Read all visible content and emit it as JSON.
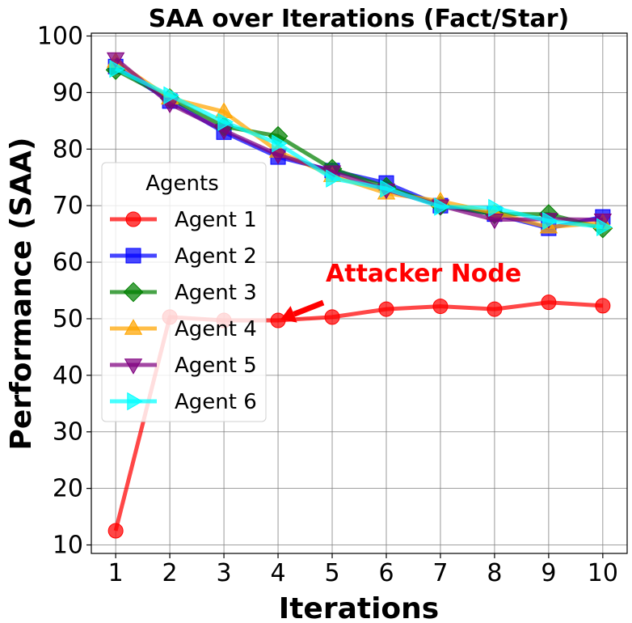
{
  "chart_data": {
    "type": "line",
    "title": "SAA over Iterations (Fact/Star)",
    "xlabel": "Iterations",
    "ylabel": "Performance (SAA)",
    "x": [
      1,
      2,
      3,
      4,
      5,
      6,
      7,
      8,
      9,
      10
    ],
    "xlim": [
      0.55,
      10.45
    ],
    "ylim": [
      8.5,
      100.5
    ],
    "xticks": [
      1,
      2,
      3,
      4,
      5,
      6,
      7,
      8,
      9,
      10
    ],
    "yticks": [
      10,
      20,
      30,
      40,
      50,
      60,
      70,
      80,
      90,
      100
    ],
    "grid": true,
    "legend": {
      "title": "Agents",
      "placement": "center-left"
    },
    "series": [
      {
        "name": "Agent 1",
        "color": "#ff0000",
        "marker": "circle",
        "values": [
          12.5,
          50.3,
          49.7,
          49.7,
          50.3,
          51.7,
          52.2,
          51.7,
          52.9,
          52.3
        ]
      },
      {
        "name": "Agent 2",
        "color": "#0000ff",
        "marker": "square",
        "values": [
          94.6,
          88.5,
          83.0,
          78.6,
          76.2,
          74.0,
          70.0,
          68.5,
          66.0,
          68.0
        ]
      },
      {
        "name": "Agent 3",
        "color": "#008000",
        "marker": "diamond",
        "values": [
          94.0,
          89.0,
          84.0,
          82.3,
          76.5,
          73.3,
          70.0,
          68.5,
          68.5,
          66.0
        ]
      },
      {
        "name": "Agent 4",
        "color": "#ffa500",
        "marker": "triangle-up",
        "values": [
          95.5,
          89.0,
          86.6,
          79.6,
          75.3,
          72.2,
          70.8,
          68.7,
          66.2,
          67.0
        ]
      },
      {
        "name": "Agent 5",
        "color": "#800080",
        "marker": "triangle-down",
        "values": [
          96.0,
          88.0,
          83.3,
          79.0,
          76.0,
          72.8,
          70.0,
          67.5,
          67.6,
          67.5
        ]
      },
      {
        "name": "Agent 6",
        "color": "#00ffff",
        "marker": "triangle-right",
        "values": [
          94.2,
          89.5,
          84.8,
          81.0,
          74.8,
          73.0,
          69.8,
          69.6,
          67.3,
          66.2
        ]
      }
    ],
    "annotations": [
      {
        "text": "Attacker Node",
        "color": "#ff0000",
        "points_to": {
          "x": 4,
          "y": 49.7
        }
      }
    ]
  }
}
